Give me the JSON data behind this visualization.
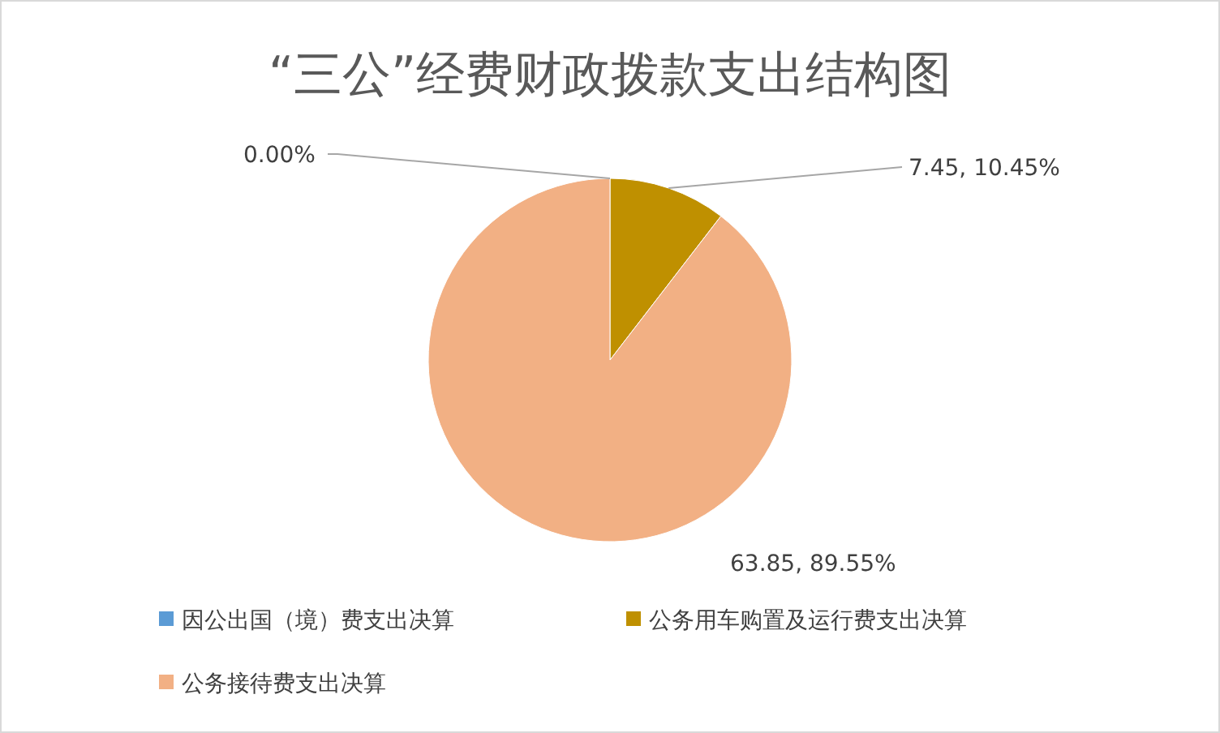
{
  "chart_data": {
    "type": "pie",
    "title": "“三公”经费财政拨款支出结构图",
    "categories": [
      "因公出国（境）费支出决算",
      "公务用车购置及运行费支出决算",
      "公务接待费支出决算"
    ],
    "values": [
      0,
      7.45,
      63.85
    ],
    "colors": [
      "#5b9bd5",
      "#bf9000",
      "#f2b084"
    ],
    "value_labels": [
      "0.00%",
      "7.45, 10.45%",
      "63.85, 89.55%"
    ],
    "legend": "bottom"
  }
}
